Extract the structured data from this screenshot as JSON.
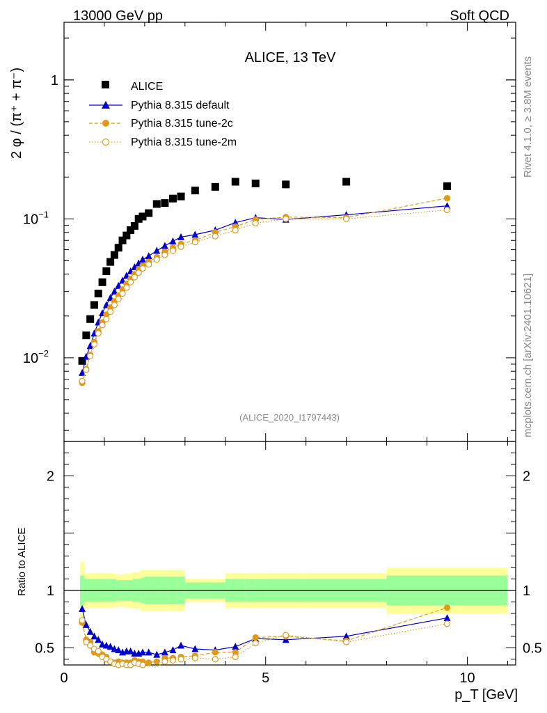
{
  "header": {
    "left": "13000 GeV pp",
    "right": "Soft QCD"
  },
  "side_labels": {
    "rivet": "Rivet 4.1.0, ≥ 3.8M events",
    "mcplots": "mcplots.cern.ch [arXiv:2401.10621]"
  },
  "colors": {
    "alice": "#000000",
    "default": "#0000cc",
    "tune2c": "#e09a1a",
    "tune2m": "#e09a1a",
    "band_inner": "#99ff99",
    "band_outer": "#ffff99",
    "analysis_label": "#888888"
  },
  "chart_data": [
    {
      "type": "scatter",
      "title": "ALICE, 13 TeV",
      "analysis_id": "(ALICE_2020_I1797443)",
      "ylabel": "2 φ / (π⁺ + π⁻)",
      "xlabel": "p_T [GeV]",
      "xlim": [
        0,
        11.2
      ],
      "ylim": [
        0.0025,
        2.6
      ],
      "yscale": "log",
      "yticks": [
        {
          "value": 0.01,
          "base": "10",
          "exp": "−2"
        },
        {
          "value": 0.1,
          "base": "10",
          "exp": "−1"
        },
        {
          "value": 1,
          "base": "1",
          "exp": ""
        }
      ],
      "legend": [
        {
          "label": "ALICE",
          "key": "alice"
        },
        {
          "label": "Pythia 8.315 default",
          "key": "default"
        },
        {
          "label": "Pythia 8.315 tune-2c",
          "key": "tune2c"
        },
        {
          "label": "Pythia 8.315 tune-2m",
          "key": "tune2m"
        }
      ],
      "x": [
        0.45,
        0.55,
        0.65,
        0.75,
        0.85,
        0.95,
        1.05,
        1.15,
        1.25,
        1.35,
        1.45,
        1.55,
        1.65,
        1.75,
        1.85,
        1.95,
        2.1,
        2.3,
        2.5,
        2.7,
        2.9,
        3.25,
        3.75,
        4.25,
        4.75,
        5.5,
        7.0,
        9.5
      ],
      "series": [
        {
          "name": "ALICE",
          "key": "alice",
          "values": [
            0.0095,
            0.0145,
            0.019,
            0.024,
            0.029,
            0.035,
            0.042,
            0.049,
            0.055,
            0.062,
            0.07,
            0.076,
            0.083,
            0.089,
            0.1,
            0.104,
            0.11,
            0.128,
            0.13,
            0.14,
            0.145,
            0.16,
            0.17,
            0.185,
            0.18,
            0.177,
            0.185,
            0.172
          ]
        },
        {
          "name": "Pythia 8.315 default",
          "key": "default",
          "values": [
            0.0078,
            0.0102,
            0.0122,
            0.015,
            0.018,
            0.021,
            0.024,
            0.027,
            0.03,
            0.033,
            0.036,
            0.039,
            0.042,
            0.045,
            0.048,
            0.051,
            0.054,
            0.059,
            0.064,
            0.069,
            0.074,
            0.077,
            0.083,
            0.094,
            0.102,
            0.099,
            0.107,
            0.124
          ]
        },
        {
          "name": "Pythia 8.315 tune-2c",
          "key": "tune2c",
          "values": [
            0.0066,
            0.0083,
            0.0105,
            0.013,
            0.0155,
            0.018,
            0.0205,
            0.023,
            0.0255,
            0.028,
            0.031,
            0.034,
            0.037,
            0.04,
            0.043,
            0.046,
            0.049,
            0.053,
            0.058,
            0.062,
            0.066,
            0.07,
            0.08,
            0.088,
            0.099,
            0.103,
            0.102,
            0.141
          ]
        },
        {
          "name": "Pythia 8.315 tune-2m",
          "key": "tune2m",
          "values": [
            0.0068,
            0.0082,
            0.0103,
            0.0125,
            0.015,
            0.0172,
            0.019,
            0.0215,
            0.024,
            0.0265,
            0.029,
            0.032,
            0.035,
            0.038,
            0.041,
            0.044,
            0.047,
            0.051,
            0.055,
            0.059,
            0.063,
            0.068,
            0.075,
            0.083,
            0.093,
            0.1,
            0.1,
            0.116
          ]
        }
      ]
    },
    {
      "type": "scatter",
      "ylabel": "Ratio to ALICE",
      "xlim": [
        0,
        11.2
      ],
      "ylim": [
        0.35,
        2.3
      ],
      "yticks": [
        0.5,
        1,
        2
      ],
      "xticks": [
        0,
        5,
        10
      ],
      "x": [
        0.45,
        0.55,
        0.65,
        0.75,
        0.85,
        0.95,
        1.05,
        1.15,
        1.25,
        1.35,
        1.45,
        1.55,
        1.65,
        1.75,
        1.85,
        1.95,
        2.1,
        2.3,
        2.5,
        2.7,
        2.9,
        3.25,
        3.75,
        4.25,
        4.75,
        5.5,
        7.0,
        9.5
      ],
      "bands": {
        "edges": [
          0.4,
          0.5,
          1.0,
          1.3,
          1.5,
          1.7,
          1.9,
          2.0,
          2.2,
          2.4,
          2.6,
          2.8,
          3.0,
          3.5,
          4.0,
          4.5,
          5.0,
          6.0,
          8.0,
          11.0
        ],
        "inner": [
          0.13,
          0.1,
          0.1,
          0.09,
          0.09,
          0.1,
          0.11,
          0.12,
          0.12,
          0.12,
          0.12,
          0.12,
          0.07,
          0.07,
          0.1,
          0.1,
          0.1,
          0.1,
          0.13
        ],
        "outer": [
          0.25,
          0.15,
          0.15,
          0.14,
          0.15,
          0.16,
          0.18,
          0.18,
          0.18,
          0.18,
          0.18,
          0.18,
          0.1,
          0.1,
          0.15,
          0.15,
          0.15,
          0.15,
          0.2
        ]
      },
      "series": [
        {
          "name": "Pythia 8.315 default",
          "key": "default",
          "values": [
            0.84,
            0.7,
            0.64,
            0.6,
            0.57,
            0.53,
            0.52,
            0.51,
            0.49,
            0.48,
            0.46,
            0.47,
            0.47,
            0.45,
            0.45,
            0.46,
            0.46,
            0.44,
            0.46,
            0.48,
            0.52,
            0.49,
            0.48,
            0.51,
            0.58,
            0.57,
            0.6,
            0.76
          ]
        },
        {
          "name": "Pythia 8.315 tune-2c",
          "key": "tune2c",
          "values": [
            0.72,
            0.57,
            0.55,
            0.46,
            0.45,
            0.44,
            0.42,
            0.38,
            0.37,
            0.38,
            0.37,
            0.37,
            0.37,
            0.39,
            0.38,
            0.38,
            0.37,
            0.38,
            0.41,
            0.41,
            0.42,
            0.43,
            0.46,
            0.46,
            0.59,
            0.6,
            0.56,
            0.85
          ]
        },
        {
          "name": "Pythia 8.315 tune-2m",
          "key": "tune2m",
          "values": [
            0.74,
            0.55,
            0.52,
            0.49,
            0.47,
            0.42,
            0.4,
            0.38,
            0.36,
            0.35,
            0.36,
            0.35,
            0.35,
            0.37,
            0.36,
            0.35,
            0.34,
            0.33,
            0.38,
            0.39,
            0.4,
            0.41,
            0.4,
            0.42,
            0.54,
            0.61,
            0.55,
            0.71
          ]
        }
      ]
    }
  ]
}
